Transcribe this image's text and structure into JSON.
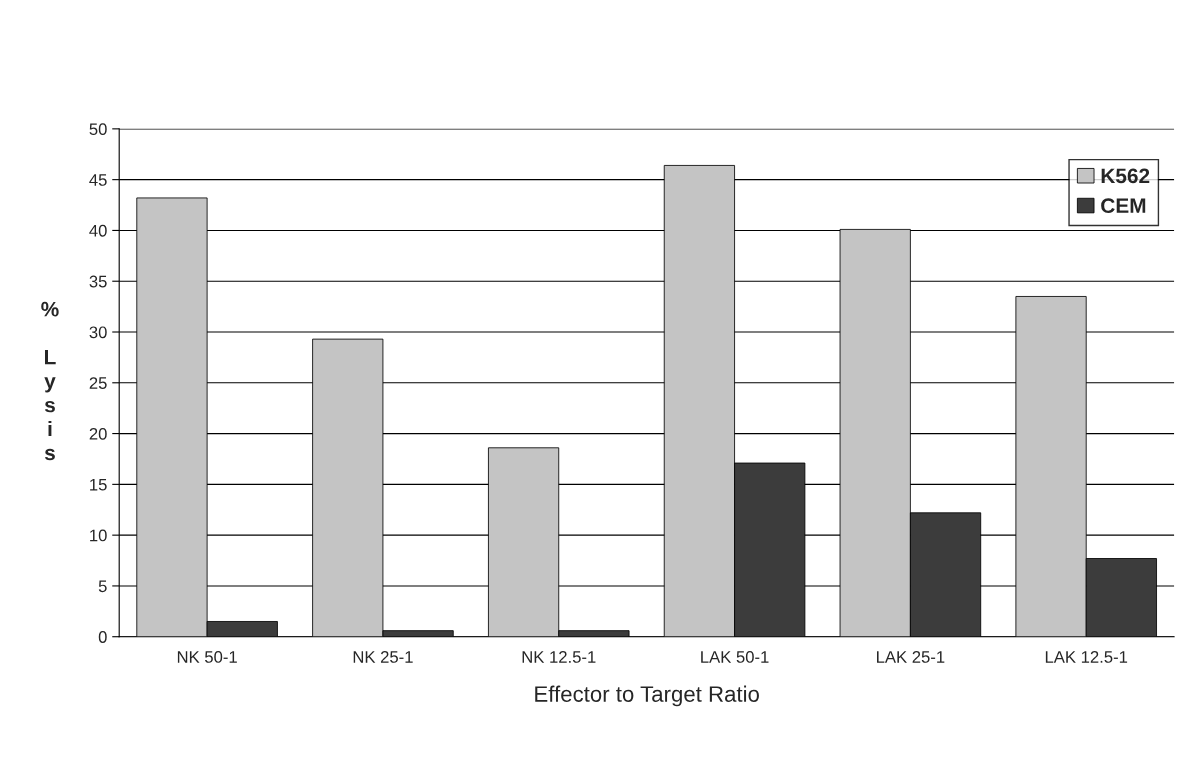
{
  "chart_data": {
    "type": "bar",
    "xlabel": "Effector to Target Ratio",
    "ylabel": "% Lysis",
    "categories": [
      "NK 50-1",
      "NK 25-1",
      "NK 12.5-1",
      "LAK 50-1",
      "LAK 25-1",
      "LAK 12.5-1"
    ],
    "series": [
      {
        "name": "K562",
        "color": "#c4c4c4",
        "values": [
          43.2,
          29.3,
          18.6,
          46.4,
          40.1,
          33.5
        ]
      },
      {
        "name": "CEM",
        "color": "#3c3c3c",
        "values": [
          1.5,
          0.6,
          0.6,
          17.1,
          12.2,
          7.7
        ]
      }
    ],
    "ylim": [
      0,
      50
    ],
    "yticks": [
      0,
      5,
      10,
      15,
      20,
      25,
      30,
      35,
      40,
      45,
      50
    ],
    "grid": "y",
    "legend": "top right"
  }
}
